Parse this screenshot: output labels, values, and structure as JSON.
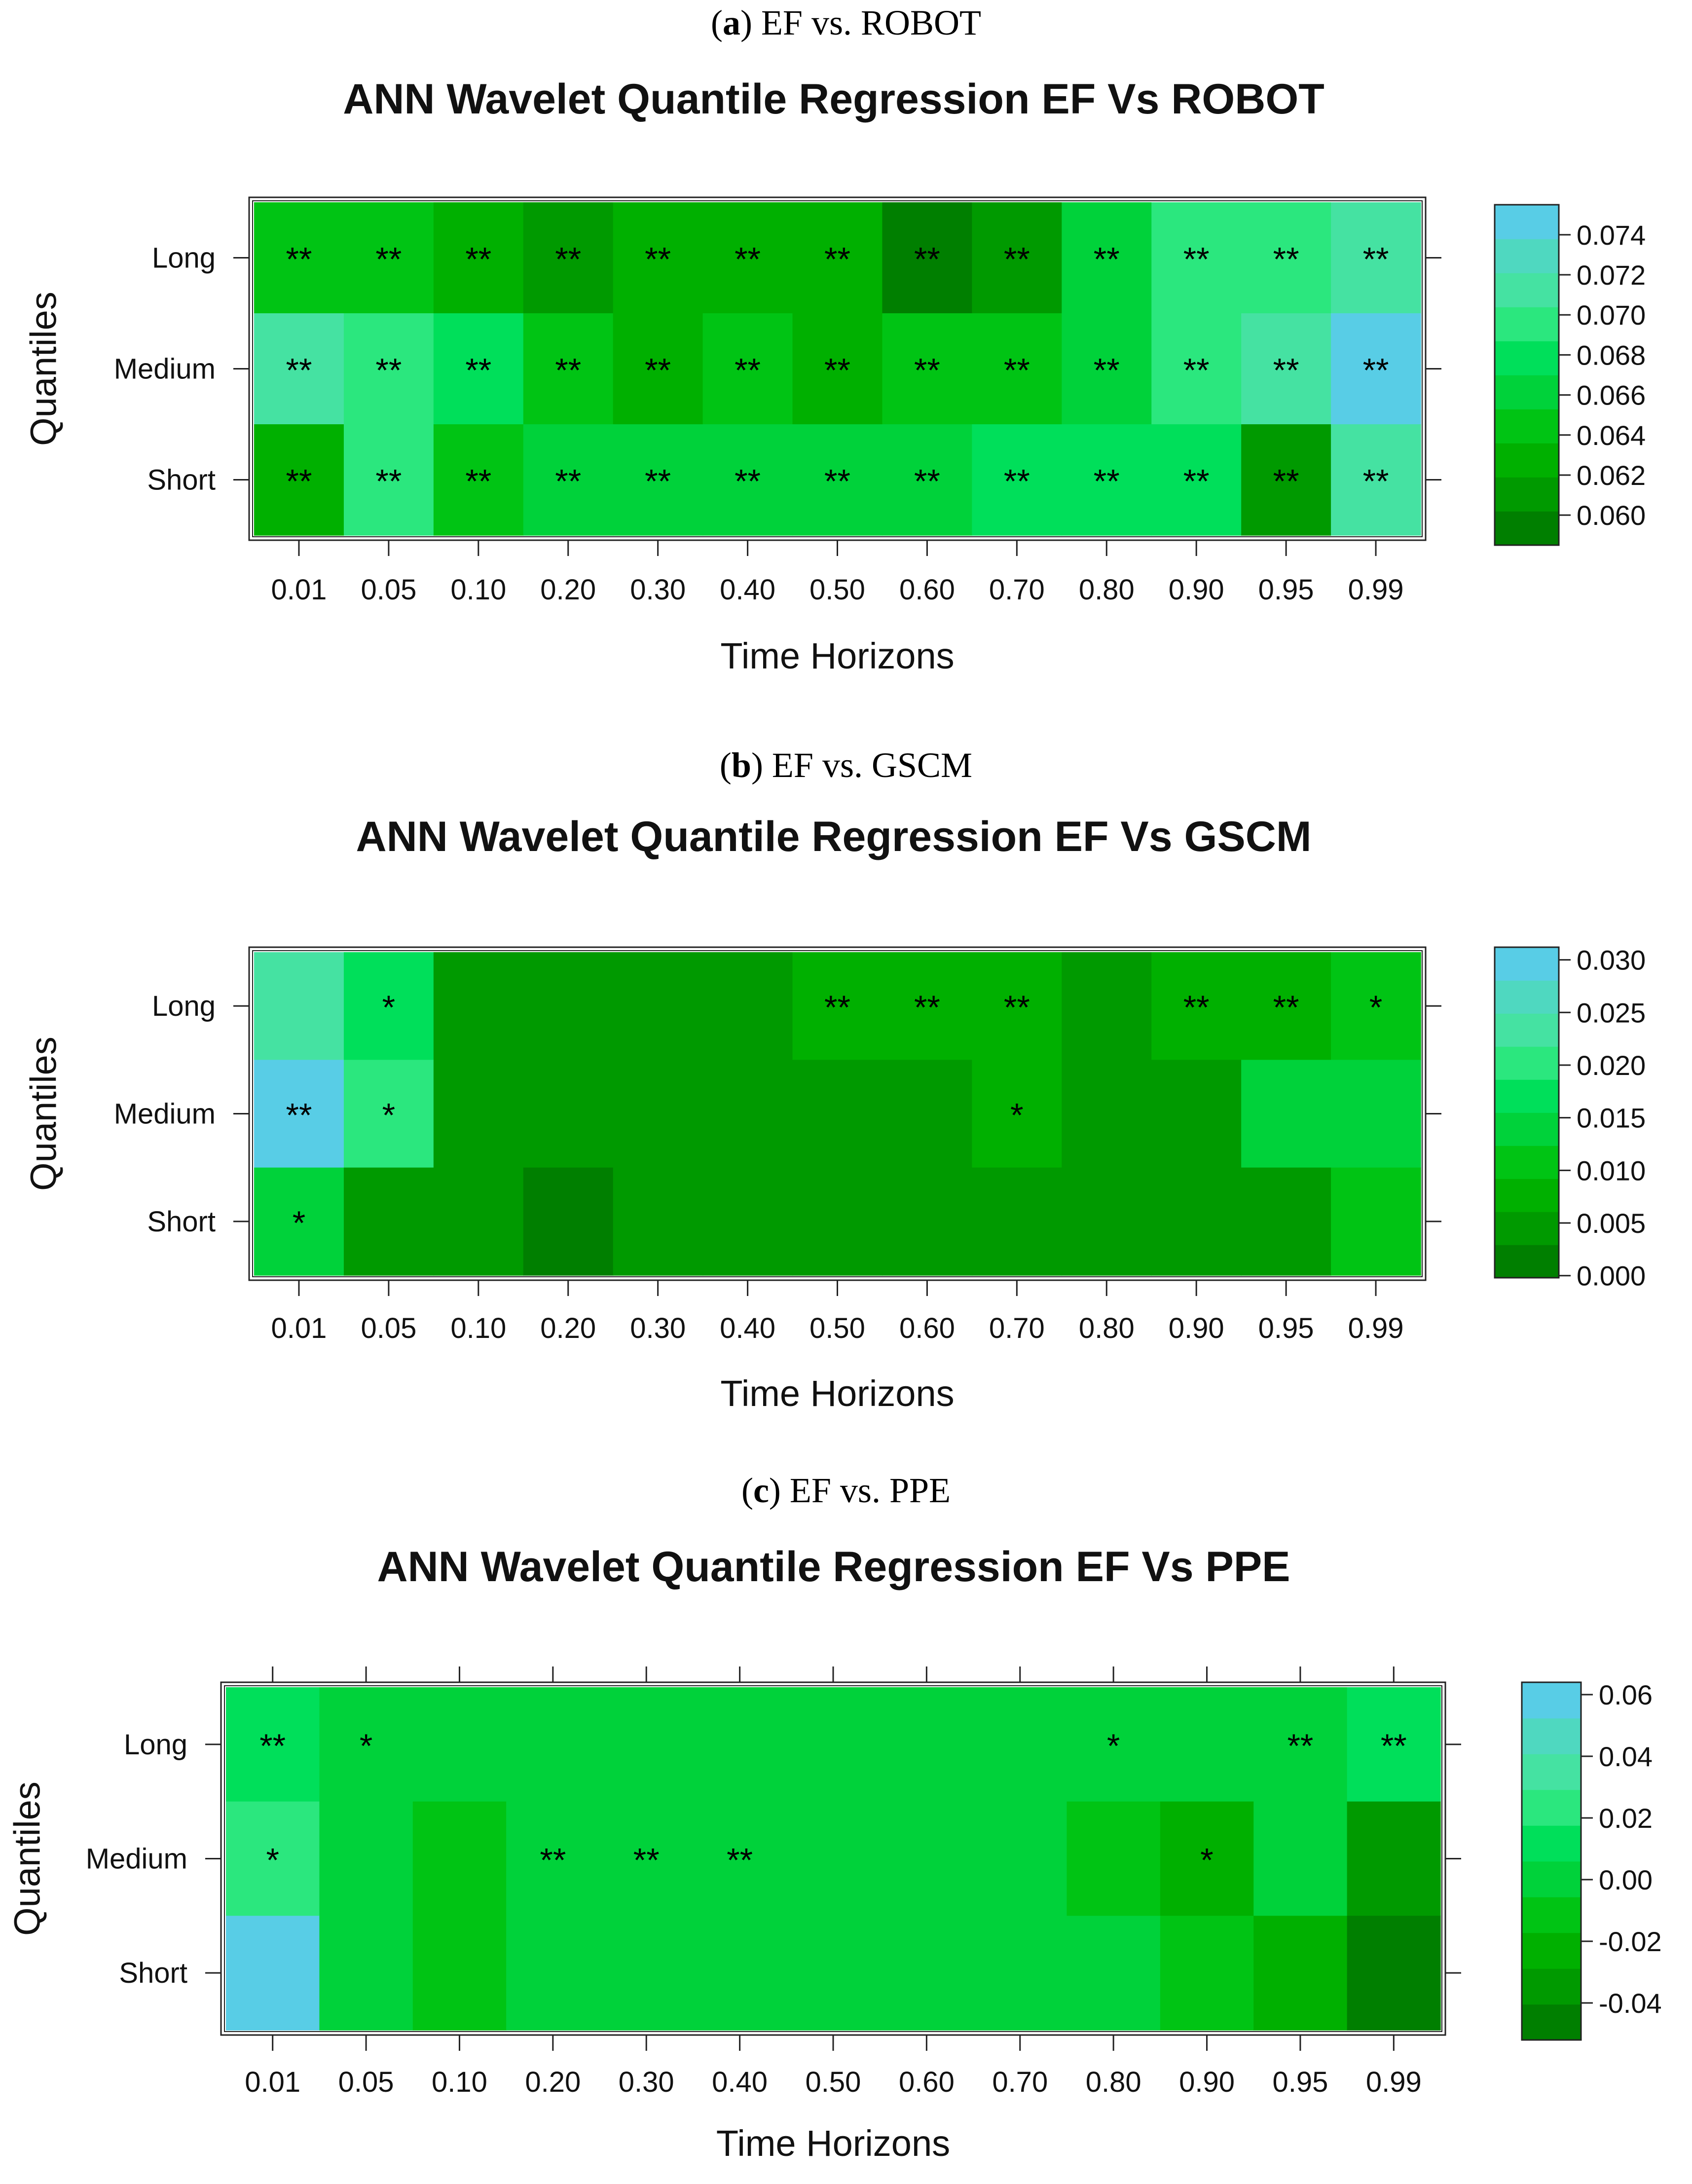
{
  "chart_data": [
    {
      "type": "heatmap",
      "caption_letter": "a",
      "caption_text": "EF vs. ROBOT",
      "title": "ANN Wavelet Quantile Regression EF Vs ROBOT",
      "xlabel": "Time Horizons",
      "ylabel": "Quantiles",
      "x_categories": [
        "0.01",
        "0.05",
        "0.10",
        "0.20",
        "0.30",
        "0.40",
        "0.50",
        "0.60",
        "0.70",
        "0.80",
        "0.90",
        "0.95",
        "0.99"
      ],
      "y_categories": [
        "Long",
        "Medium",
        "Short"
      ],
      "values": [
        [
          0.065,
          0.065,
          0.062,
          0.061,
          0.063,
          0.062,
          0.063,
          0.059,
          0.061,
          0.066,
          0.07,
          0.07,
          0.071
        ],
        [
          0.072,
          0.069,
          0.067,
          0.064,
          0.062,
          0.064,
          0.062,
          0.064,
          0.064,
          0.066,
          0.07,
          0.072,
          0.075
        ],
        [
          0.062,
          0.07,
          0.064,
          0.066,
          0.066,
          0.066,
          0.066,
          0.066,
          0.067,
          0.067,
          0.067,
          0.061,
          0.071
        ]
      ],
      "significance": [
        [
          "**",
          "**",
          "**",
          "**",
          "**",
          "**",
          "**",
          "**",
          "**",
          "**",
          "**",
          "**",
          "**"
        ],
        [
          "**",
          "**",
          "**",
          "**",
          "**",
          "**",
          "**",
          "**",
          "**",
          "**",
          "**",
          "**",
          "**"
        ],
        [
          "**",
          "**",
          "**",
          "**",
          "**",
          "**",
          "**",
          "**",
          "**",
          "**",
          "**",
          "**",
          "**"
        ]
      ],
      "colorbar_ticks": [
        "0.074",
        "0.072",
        "0.070",
        "0.068",
        "0.066",
        "0.064",
        "0.062",
        "0.060"
      ],
      "colorbar_tick_values": [
        0.074,
        0.072,
        0.07,
        0.068,
        0.066,
        0.064,
        0.062,
        0.06
      ],
      "zlim": [
        0.0585,
        0.0755
      ]
    },
    {
      "type": "heatmap",
      "caption_letter": "b",
      "caption_text": "EF vs. GSCM",
      "title": "ANN Wavelet Quantile Regression EF Vs GSCM",
      "xlabel": "Time Horizons",
      "ylabel": "Quantiles",
      "x_categories": [
        "0.01",
        "0.05",
        "0.10",
        "0.20",
        "0.30",
        "0.40",
        "0.50",
        "0.60",
        "0.70",
        "0.80",
        "0.90",
        "0.95",
        "0.99"
      ],
      "y_categories": [
        "Long",
        "Medium",
        "Short"
      ],
      "values": [
        [
          0.022,
          0.018,
          0.006,
          0.005,
          0.005,
          0.006,
          0.008,
          0.008,
          0.008,
          0.006,
          0.008,
          0.009,
          0.011
        ],
        [
          0.029,
          0.021,
          0.004,
          0.004,
          0.004,
          0.006,
          0.006,
          0.006,
          0.007,
          0.005,
          0.006,
          0.013,
          0.013
        ],
        [
          0.015,
          0.003,
          0.003,
          0.002,
          0.003,
          0.003,
          0.003,
          0.003,
          0.003,
          0.003,
          0.003,
          0.003,
          0.011
        ]
      ],
      "significance": [
        [
          "",
          "*",
          "",
          "",
          "",
          "",
          "**",
          "**",
          "**",
          "",
          "**",
          "**",
          "*"
        ],
        [
          "**",
          "*",
          "",
          "",
          "",
          "",
          "",
          "",
          "*",
          "",
          "",
          "",
          ""
        ],
        [
          "*",
          "",
          "",
          "",
          "",
          "",
          "",
          "",
          "",
          "",
          "",
          "",
          ""
        ]
      ],
      "colorbar_ticks": [
        "0.030",
        "0.025",
        "0.020",
        "0.015",
        "0.010",
        "0.005",
        "0.000"
      ],
      "colorbar_tick_values": [
        0.03,
        0.025,
        0.02,
        0.015,
        0.01,
        0.005,
        0.0
      ],
      "zlim": [
        -0.0002,
        0.0312
      ]
    },
    {
      "type": "heatmap",
      "caption_letter": "c",
      "caption_text": "EF vs. PPE",
      "title": "ANN Wavelet Quantile Regression EF Vs PPE",
      "xlabel": "Time Horizons",
      "ylabel": "Quantiles",
      "x_categories": [
        "0.01",
        "0.05",
        "0.10",
        "0.20",
        "0.30",
        "0.40",
        "0.50",
        "0.60",
        "0.70",
        "0.80",
        "0.90",
        "0.95",
        "0.99"
      ],
      "y_categories": [
        "Long",
        "Medium",
        "Short"
      ],
      "values": [
        [
          0.008,
          0.004,
          0.004,
          0.0,
          0.0,
          0.0,
          0.0,
          0.0,
          0.0,
          0.0,
          0.0,
          0.0,
          0.012
        ],
        [
          0.025,
          -0.005,
          -0.007,
          -0.004,
          -0.004,
          -0.004,
          -0.004,
          0.0,
          0.0,
          -0.007,
          -0.018,
          -0.005,
          -0.03
        ],
        [
          0.058,
          -0.004,
          -0.007,
          -0.001,
          -0.001,
          -0.001,
          -0.001,
          -0.001,
          -0.001,
          -0.001,
          -0.007,
          -0.02,
          -0.044
        ]
      ],
      "significance": [
        [
          "**",
          "*",
          "",
          "",
          "",
          "",
          "",
          "",
          "",
          "*",
          "",
          "**",
          "**"
        ],
        [
          "*",
          "",
          "",
          "**",
          "**",
          "**",
          "",
          "",
          "",
          "",
          "*",
          "",
          ""
        ],
        [
          "",
          "",
          "",
          "",
          "",
          "",
          "",
          "",
          "",
          "",
          "",
          "",
          ""
        ]
      ],
      "colorbar_ticks": [
        "0.06",
        "0.04",
        "0.02",
        "0.00",
        "-0.02",
        "-0.04"
      ],
      "colorbar_tick_values": [
        0.06,
        0.04,
        0.02,
        0.0,
        -0.02,
        -0.04
      ],
      "zlim": [
        -0.052,
        0.064
      ]
    }
  ]
}
